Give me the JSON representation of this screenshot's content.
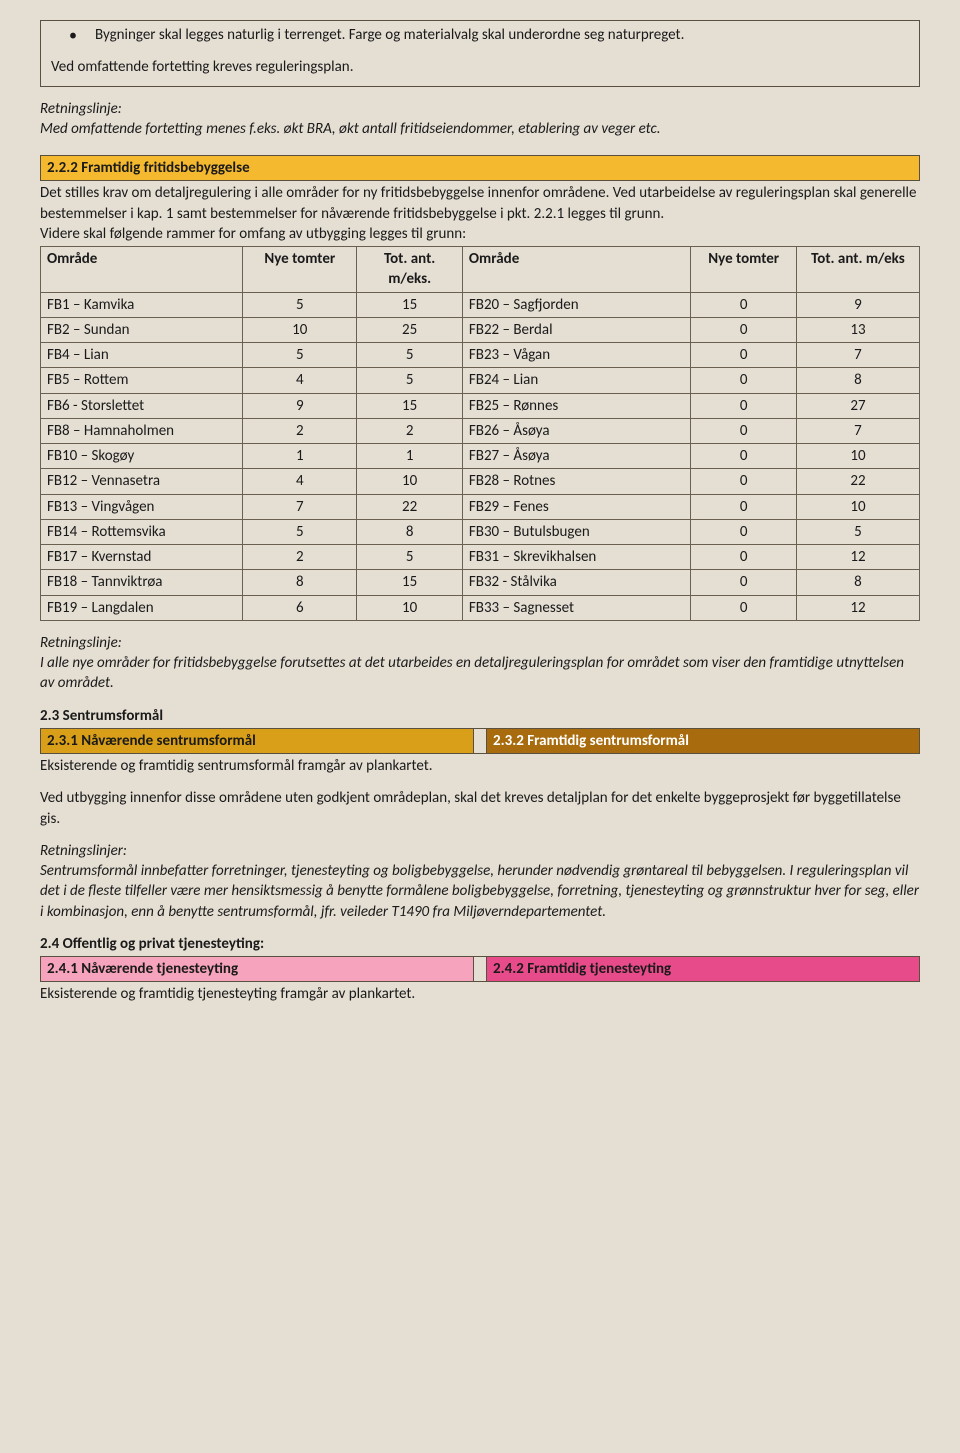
{
  "box1": {
    "bullet": "Bygninger skal legges naturlig i terrenget. Farge og materialvalg skal underordne seg naturpreget.",
    "line": "Ved omfattende fortetting kreves reguleringsplan."
  },
  "retn1": {
    "label": "Retningslinje:",
    "text": "Med omfattende fortetting menes f.eks. økt BRA, økt antall fritidseiendommer, etablering av veger etc."
  },
  "sec222": {
    "title": "2.2.2  Framtidig fritidsbebyggelse",
    "p1": "Det stilles krav om detaljregulering i alle områder for ny fritidsbebyggelse innenfor områdene. Ved utarbeidelse av reguleringsplan skal generelle bestemmelser i kap. 1 samt bestemmelser for nåværende fritidsbebyggelse i pkt. 2.2.1 legges til grunn.",
    "p2": "Videre skal følgende rammer for omfang av utbygging legges til grunn:",
    "headers": {
      "omrade": "Område",
      "nye": "Nye tomter",
      "tot": "Tot. ant. m/eks.",
      "omrade2": "Område",
      "nye2": "Nye tomter",
      "tot2": "Tot. ant. m/eks"
    },
    "rows": [
      [
        "FB1 – Kamvika",
        "5",
        "15",
        "FB20 – Sagfjorden",
        "0",
        "9"
      ],
      [
        "FB2 – Sundan",
        "10",
        "25",
        "FB22 – Berdal",
        "0",
        "13"
      ],
      [
        "FB4 – Lian",
        "5",
        "5",
        "FB23 – Vågan",
        "0",
        "7"
      ],
      [
        "FB5 – Rottem",
        "4",
        "5",
        "FB24 – Lian",
        "0",
        "8"
      ],
      [
        "FB6 - Storslettet",
        "9",
        "15",
        "FB25 – Rønnes",
        "0",
        "27"
      ],
      [
        "FB8 – Hamnaholmen",
        "2",
        "2",
        "FB26 – Åsøya",
        "0",
        "7"
      ],
      [
        "FB10 – Skogøy",
        "1",
        "1",
        "FB27 – Åsøya",
        "0",
        "10"
      ],
      [
        "FB12 – Vennasetra",
        "4",
        "10",
        "FB28 – Rotnes",
        "0",
        "22"
      ],
      [
        "FB13 – Vingvågen",
        "7",
        "22",
        "FB29 – Fenes",
        "0",
        "10"
      ],
      [
        "FB14 – Rottemsvika",
        "5",
        "8",
        "FB30 – Butulsbugen",
        "0",
        "5"
      ],
      [
        "FB17 – Kvernstad",
        "2",
        "5",
        "FB31 – Skrevikhalsen",
        "0",
        "12"
      ],
      [
        "FB18 – Tannviktrøa",
        "8",
        "15",
        "FB32 - Stålvika",
        "0",
        "8"
      ],
      [
        "FB19 – Langdalen",
        "6",
        "10",
        "FB33 – Sagnesset",
        "0",
        "12"
      ]
    ]
  },
  "retn2": {
    "label": "Retningslinje:",
    "text": "I alle nye områder for fritidsbebyggelse forutsettes at det utarbeides en detaljreguleringsplan for området som viser den framtidige utnyttelsen av området."
  },
  "sec23": {
    "heading": "2.3       Sentrumsformål",
    "left": "2.3.1 Nåværende sentrumsformål",
    "right": "2.3.2 Framtidig sentrumsformål",
    "left_color": "#d99f18",
    "right_color": "#a86c0f",
    "right_text_color": "#ffffff",
    "p1": "Eksisterende og framtidig sentrumsformål framgår av plankartet.",
    "p2": "Ved utbygging innenfor disse områdene uten godkjent områdeplan, skal det kreves detaljplan for det enkelte byggeprosjekt før byggetillatelse gis."
  },
  "retn3": {
    "label": "Retningslinjer:",
    "text": "Sentrumsformål innbefatter forretninger, tjenesteyting og boligbebyggelse, herunder nødvendig grøntareal til bebyggelsen. I reguleringsplan vil det i de fleste tilfeller være mer hensiktsmessig å benytte formålene boligbebyggelse, forretning, tjenesteyting og grønnstruktur hver for seg, eller i kombinasjon, enn å benytte sentrumsformål, jfr. veileder T1490 fra Miljøverndepartementet."
  },
  "sec24": {
    "heading": "2.4       Offentlig og privat tjenesteyting:",
    "left": "2.4.1 Nåværende tjenesteyting",
    "right": "2.4.2 Framtidig tjenesteyting",
    "left_color": "#f6a3bd",
    "right_color": "#e84b8a",
    "p1": "Eksisterende og framtidig tjenesteyting framgår av plankartet."
  }
}
